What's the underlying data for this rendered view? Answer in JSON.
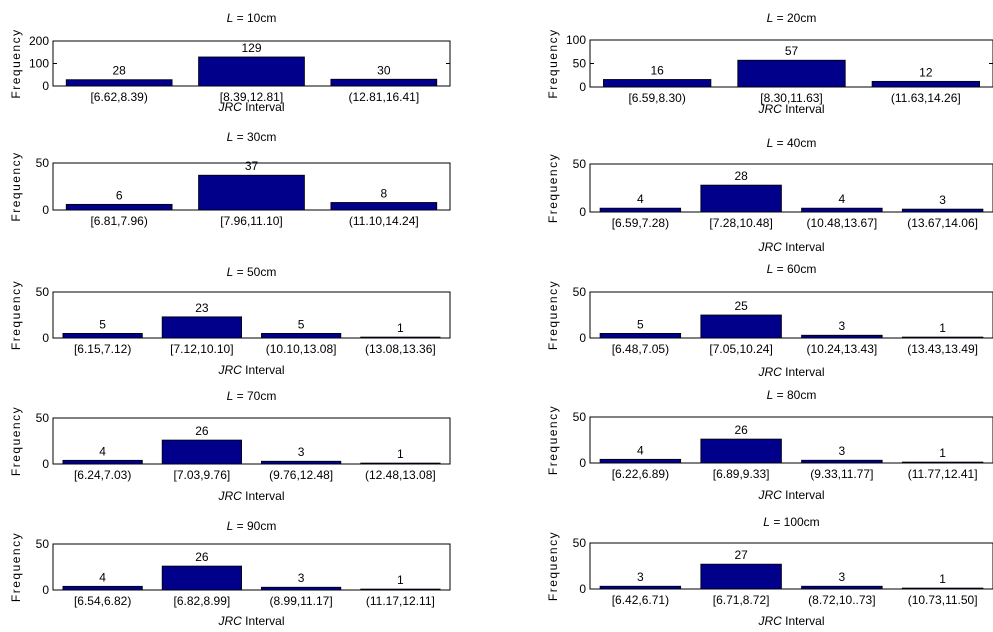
{
  "chart_data": [
    {
      "type": "bar",
      "title_var": "L",
      "title_rest": " = 10cm",
      "categories": [
        "[6.62,8.39)",
        "[8.39,12.81]",
        "(12.81,16.41]"
      ],
      "values": [
        28,
        129,
        30
      ],
      "ylim": [
        0,
        200
      ],
      "yticks": [
        "0",
        "100",
        "200"
      ],
      "ylabel": "Frequency",
      "xlabel_var": "JRC",
      "xlabel_rest": " Interval"
    },
    {
      "type": "bar",
      "title_var": "L",
      "title_rest": " = 20cm",
      "categories": [
        "[6.59,8.30)",
        "[8.30,11.63]",
        "(11.63,14.26]"
      ],
      "values": [
        16,
        57,
        12
      ],
      "ylim": [
        0,
        100
      ],
      "yticks": [
        "0",
        "50",
        "100"
      ],
      "ylabel": "Frequency",
      "xlabel_var": "JRC",
      "xlabel_rest": " Interval"
    },
    {
      "type": "bar",
      "title_var": "L",
      "title_rest": " = 30cm",
      "categories": [
        "[6.81,7.96)",
        "[7.96,11.10]",
        "(11.10,14.24]"
      ],
      "values": [
        6,
        37,
        8
      ],
      "ylim": [
        0,
        50
      ],
      "yticks": [
        "0",
        "50"
      ],
      "ylabel": "Frequency",
      "xlabel_var": "",
      "xlabel_rest": ""
    },
    {
      "type": "bar",
      "title_var": "L",
      "title_rest": " = 40cm",
      "categories": [
        "[6.59,7.28)",
        "[7.28,10.48]",
        "(10.48,13.67]",
        "(13.67,14.06]"
      ],
      "values": [
        4,
        28,
        4,
        3
      ],
      "ylim": [
        0,
        50
      ],
      "yticks": [
        "0",
        "50"
      ],
      "ylabel": "Frequency",
      "xlabel_var": "JRC",
      "xlabel_rest": " Interval"
    },
    {
      "type": "bar",
      "title_var": "L",
      "title_rest": " = 50cm",
      "categories": [
        "[6.15,7.12)",
        "[7.12,10.10]",
        "(10.10,13.08]",
        "(13.08,13.36]"
      ],
      "values": [
        5,
        23,
        5,
        1
      ],
      "ylim": [
        0,
        50
      ],
      "yticks": [
        "0",
        "50"
      ],
      "ylabel": "Frequency",
      "xlabel_var": "JRC",
      "xlabel_rest": " Interval"
    },
    {
      "type": "bar",
      "title_var": "L",
      "title_rest": " = 60cm",
      "categories": [
        "[6.48,7.05)",
        "[7.05,10.24]",
        "(10.24,13.43]",
        "(13.43,13.49]"
      ],
      "values": [
        5,
        25,
        3,
        1
      ],
      "ylim": [
        0,
        50
      ],
      "yticks": [
        "0",
        "50"
      ],
      "ylabel": "Frequency",
      "xlabel_var": "JRC",
      "xlabel_rest": " Interval"
    },
    {
      "type": "bar",
      "title_var": "L",
      "title_rest": " = 70cm",
      "categories": [
        "[6.24,7.03)",
        "[7.03,9.76]",
        "(9.76,12.48]",
        "(12.48,13.08]"
      ],
      "values": [
        4,
        26,
        3,
        1
      ],
      "ylim": [
        0,
        50
      ],
      "yticks": [
        "0",
        "50"
      ],
      "ylabel": "Frequency",
      "xlabel_var": "JRC",
      "xlabel_rest": " Interval"
    },
    {
      "type": "bar",
      "title_var": "L",
      "title_rest": " = 80cm",
      "categories": [
        "[6.22,6.89)",
        "[6.89,9.33]",
        "(9.33,11.77]",
        "(11.77,12.41]"
      ],
      "values": [
        4,
        26,
        3,
        1
      ],
      "ylim": [
        0,
        50
      ],
      "yticks": [
        "0",
        "50"
      ],
      "ylabel": "Frequency",
      "xlabel_var": "JRC",
      "xlabel_rest": " Interval"
    },
    {
      "type": "bar",
      "title_var": "L",
      "title_rest": " = 90cm",
      "categories": [
        "[6.54,6.82)",
        "[6.82,8.99]",
        "(8.99,11.17]",
        "(11.17,12.11]"
      ],
      "values": [
        4,
        26,
        3,
        1
      ],
      "ylim": [
        0,
        50
      ],
      "yticks": [
        "0",
        "50"
      ],
      "ylabel": "Frequency",
      "xlabel_var": "JRC",
      "xlabel_rest": " Interval"
    },
    {
      "type": "bar",
      "title_var": "L",
      "title_rest": " = 100cm",
      "categories": [
        "[6.42,6.71)",
        "[6.71,8.72]",
        "(8.72,10..73]",
        "(10.73,11.50]"
      ],
      "values": [
        3,
        27,
        3,
        1
      ],
      "ylim": [
        0,
        50
      ],
      "yticks": [
        "0",
        "50"
      ],
      "ylabel": "Frequency",
      "xlabel_var": "JRC",
      "xlabel_rest": " Interval"
    }
  ],
  "colors": {
    "bar_fill": "#00008b",
    "axis": "#000000",
    "background": "#ffffff"
  }
}
